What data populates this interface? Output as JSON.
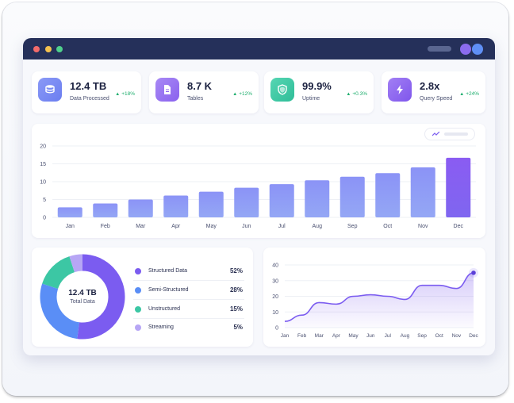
{
  "stats": [
    {
      "value": "12.4 TB",
      "label": "Data Processed",
      "delta": "+18%",
      "icon": "database-icon",
      "color": "#7f8ef4"
    },
    {
      "value": "8.7 K",
      "label": "Tables",
      "delta": "+12%",
      "icon": "document-icon",
      "color": "#9a74f2"
    },
    {
      "value": "99.9%",
      "label": "Uptime",
      "delta": "+0.3%",
      "icon": "shield-icon",
      "color": "#3cc7a4"
    },
    {
      "value": "2.8x",
      "label": "Query Speed",
      "delta": "+24%",
      "icon": "lightning-icon",
      "color": "#9469f0"
    }
  ],
  "donut": {
    "center_value": "12.4 TB",
    "center_label": "Total Data",
    "legend": [
      {
        "name": "Structured Data",
        "pct": "52%",
        "color": "#7b5cf0"
      },
      {
        "name": "Semi-Structured",
        "pct": "28%",
        "color": "#5a8ef6"
      },
      {
        "name": "Unstructured",
        "pct": "15%",
        "color": "#3cc7a4"
      },
      {
        "name": "Streaming",
        "pct": "5%",
        "color": "#b7a6f5"
      }
    ]
  },
  "chart_data": [
    {
      "type": "bar",
      "categories": [
        "Jan",
        "Feb",
        "Mar",
        "Apr",
        "May",
        "Jun",
        "Jul",
        "Aug",
        "Sep",
        "Oct",
        "Nov",
        "Dec"
      ],
      "values": [
        2.8,
        3.9,
        5.0,
        6.1,
        7.2,
        8.3,
        9.3,
        10.4,
        11.4,
        12.4,
        14.0,
        16.7
      ],
      "ylim": [
        0,
        20
      ],
      "yticks": [
        0,
        5,
        10,
        15,
        20
      ],
      "grid": true,
      "colors": {
        "bar": "#8a97f4",
        "highlight": "#7b5cf0"
      }
    },
    {
      "type": "pie",
      "categories": [
        "Structured Data",
        "Semi-Structured",
        "Unstructured",
        "Streaming"
      ],
      "values": [
        52,
        28,
        15,
        5
      ]
    },
    {
      "type": "area",
      "x": [
        "Jan",
        "Feb",
        "Mar",
        "Apr",
        "May",
        "Jun",
        "Jul",
        "Aug",
        "Sep",
        "Oct",
        "Nov",
        "Dec"
      ],
      "values": [
        4,
        8,
        16,
        15,
        20,
        21,
        20,
        18,
        27,
        27,
        25,
        35
      ],
      "ylim": [
        0,
        40
      ],
      "yticks": [
        0,
        10,
        20,
        30,
        40
      ],
      "colors": {
        "line": "#7b5cf0"
      }
    }
  ]
}
